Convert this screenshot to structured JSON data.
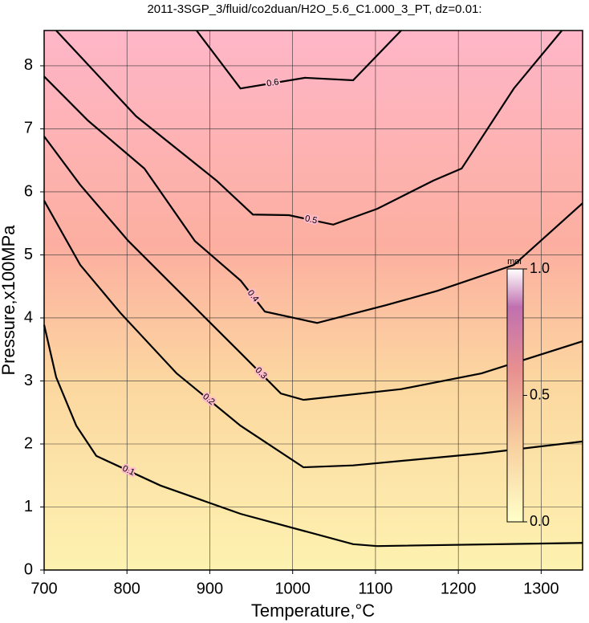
{
  "chart_data": {
    "type": "contour",
    "title": "2011-3SGP_3/fluid/co2duan/H2O_5.6_C1.000_3_PT, dz=0.01:",
    "x_label": "Temperature,°C",
    "y_label": "Pressure,x100MPa",
    "xlim": [
      700,
      1350
    ],
    "ylim": [
      0,
      8.56
    ],
    "xticks": [
      700,
      800,
      900,
      1000,
      1100,
      1200,
      1300
    ],
    "yticks": [
      0,
      1,
      2,
      3,
      4,
      5,
      6,
      7,
      8
    ],
    "grid": true,
    "color": "#000000",
    "contours": [
      {
        "level": 0.1,
        "x": [
          700,
          714.5,
          738.8,
          763,
          840.5,
          937.4,
          1073,
          1102,
          1350
        ],
        "y": [
          3.89,
          3.06,
          2.29,
          1.81,
          1.34,
          0.89,
          0.41,
          0.38,
          0.43
        ]
      },
      {
        "level": 0.2,
        "x": [
          700,
          743.6,
          792,
          860,
          937,
          1013,
          1073,
          1228,
          1350
        ],
        "y": [
          5.86,
          4.84,
          4.08,
          3.12,
          2.29,
          1.63,
          1.66,
          1.85,
          2.04
        ]
      },
      {
        "level": 0.3,
        "x": [
          700,
          743.6,
          801.7,
          869.5,
          937.4,
          985.8,
          1013,
          1131,
          1228,
          1350
        ],
        "y": [
          6.88,
          6.11,
          5.22,
          4.33,
          3.44,
          2.8,
          2.7,
          2.87,
          3.12,
          3.63
        ]
      },
      {
        "level": 0.4,
        "x": [
          700,
          753,
          821,
          882,
          937.4,
          966.5,
          1029.5,
          1112,
          1175,
          1267,
          1350
        ],
        "y": [
          7.83,
          7.13,
          6.37,
          5.22,
          4.59,
          4.1,
          3.92,
          4.2,
          4.43,
          4.84,
          5.82
        ]
      },
      {
        "level": 0.5,
        "x": [
          714.5,
          743.6,
          811,
          908,
          952,
          995.5,
          1049,
          1102,
          1170,
          1204,
          1267,
          1325
        ],
        "y": [
          8.56,
          8.15,
          7.2,
          6.18,
          5.64,
          5.63,
          5.48,
          5.73,
          6.18,
          6.37,
          7.64,
          8.56
        ]
      },
      {
        "level": 0.6,
        "x": [
          884,
          937,
          1015,
          1073,
          1131
        ],
        "y": [
          8.56,
          7.64,
          7.81,
          7.77,
          8.56
        ]
      }
    ],
    "colorbar": {
      "label": "mol",
      "lim": [
        0,
        1
      ],
      "ticks": [
        {
          "value": 0,
          "label": "0.0"
        },
        {
          "value": 0.5,
          "label": "0.5"
        },
        {
          "value": 1,
          "label": "1.0"
        }
      ]
    }
  }
}
